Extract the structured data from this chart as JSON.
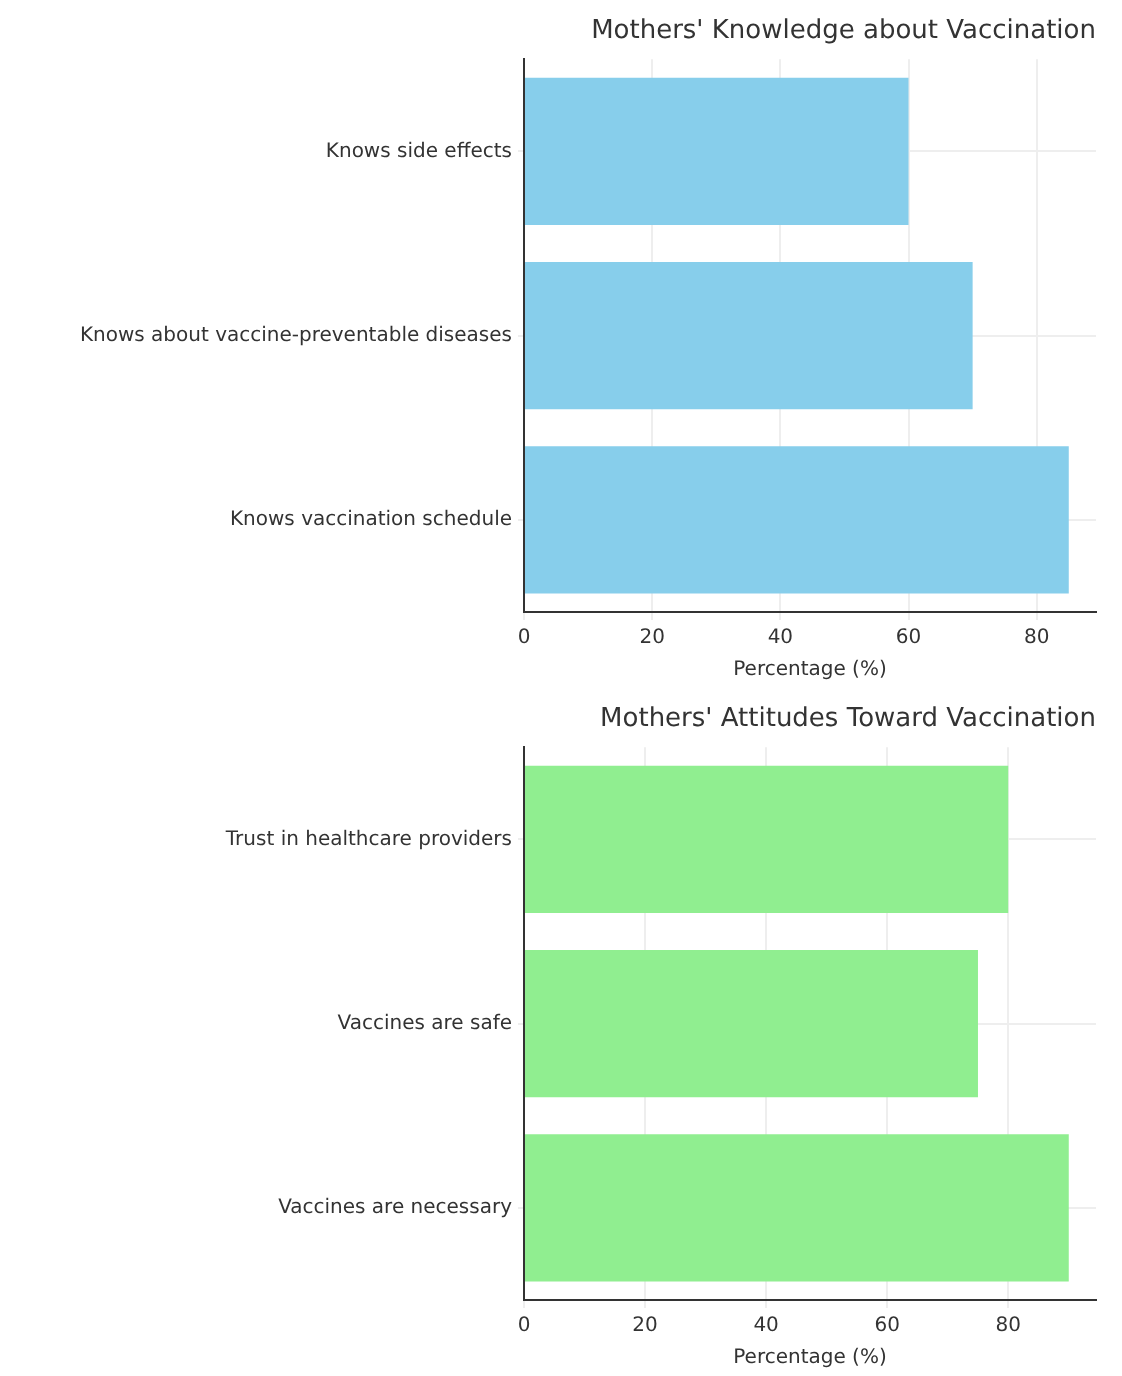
{
  "chart_data": [
    {
      "type": "bar",
      "orientation": "horizontal",
      "title": "Mothers' Knowledge about Vaccination",
      "xlabel": "Percentage (%)",
      "categories": [
        "Knows side effects",
        "Knows about vaccine-preventable diseases",
        "Knows vaccination schedule"
      ],
      "values": [
        60,
        70,
        85
      ],
      "color": "#87ceeb",
      "xlim": [
        0,
        89.25
      ],
      "xticks": [
        0,
        20,
        40,
        60,
        80
      ],
      "grid": true,
      "legend": false
    },
    {
      "type": "bar",
      "orientation": "horizontal",
      "title": "Mothers' Attitudes Toward Vaccination",
      "xlabel": "Percentage (%)",
      "categories": [
        "Trust in healthcare providers",
        "Vaccines are safe",
        "Vaccines are necessary"
      ],
      "values": [
        80,
        75,
        90
      ],
      "color": "#90ee90",
      "xlim": [
        0,
        94.5
      ],
      "xticks": [
        0,
        20,
        40,
        60,
        80
      ],
      "grid": true,
      "legend": false
    }
  ]
}
